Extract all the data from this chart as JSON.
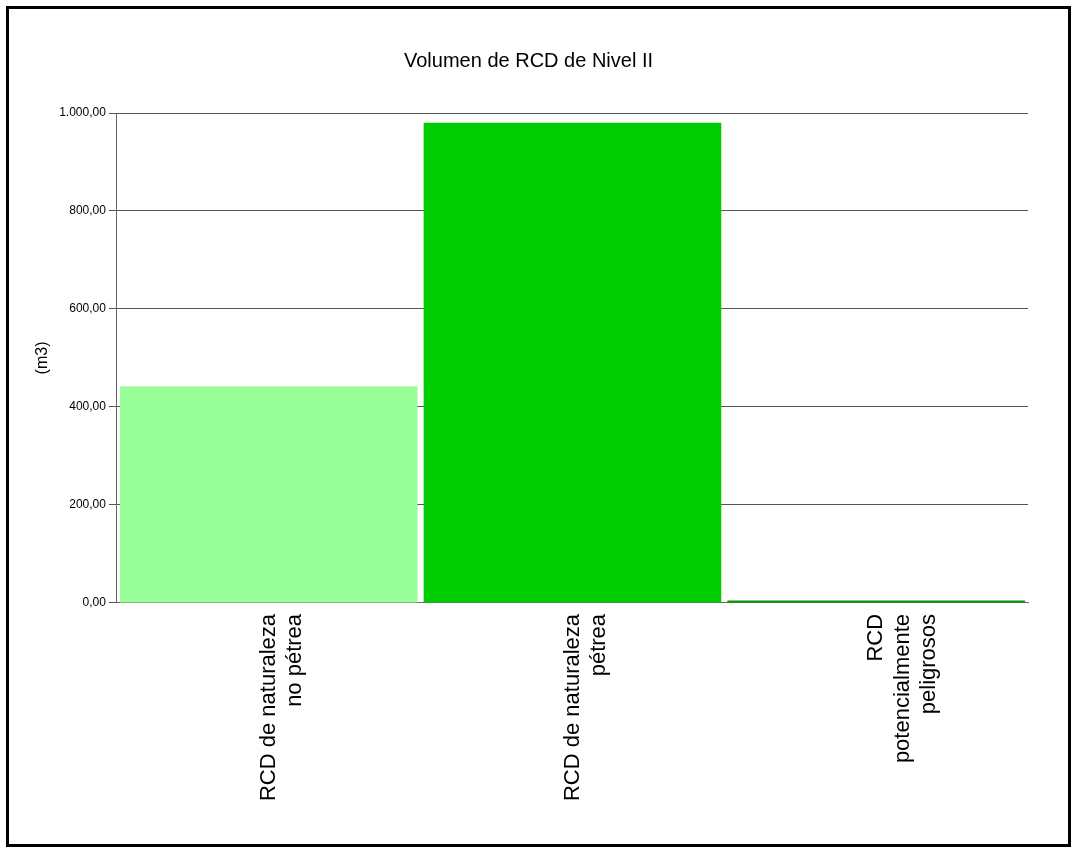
{
  "chart_data": {
    "type": "bar",
    "title": "Volumen de RCD de Nivel II",
    "ylabel": "(m3)",
    "categories": [
      "RCD de naturaleza\nno pétrea",
      "RCD de naturaleza\npétrea",
      "RCD\npotencialmente\npeligrosos"
    ],
    "values": [
      442,
      980,
      5
    ],
    "colors": [
      "#99ff99",
      "#00cc00",
      "#009900"
    ],
    "ylim": [
      0,
      1000
    ],
    "yticks": [
      {
        "value": 0,
        "label": "0,00"
      },
      {
        "value": 200,
        "label": "200,00"
      },
      {
        "value": 400,
        "label": "400,00"
      },
      {
        "value": 600,
        "label": "600,00"
      },
      {
        "value": 800,
        "label": "800,00"
      },
      {
        "value": 1000,
        "label": "1.000,00"
      }
    ],
    "grid": "y",
    "legend": false
  }
}
